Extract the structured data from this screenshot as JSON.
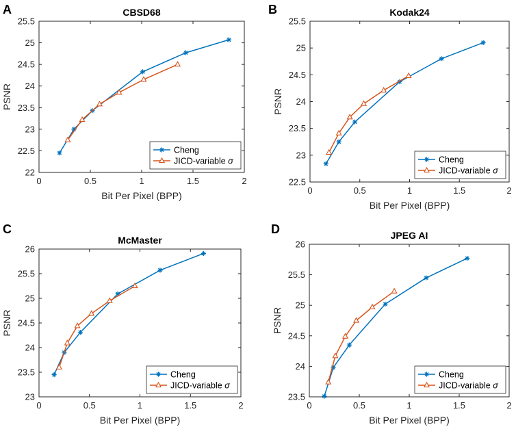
{
  "chart_data": [
    {
      "panel": "A",
      "type": "line",
      "title": "CBSD68",
      "xlabel": "Bit Per Pixel (BPP)",
      "ylabel": "PSNR",
      "xlim": [
        0,
        2
      ],
      "ylim": [
        22,
        25.5
      ],
      "xticks": [
        0,
        0.5,
        1,
        1.5,
        2
      ],
      "xtick_labels": [
        "0",
        "0.5",
        "1",
        "1.5",
        "2"
      ],
      "yticks": [
        22,
        22.5,
        23,
        23.5,
        24,
        24.5,
        25,
        25.5
      ],
      "ytick_labels": [
        "22",
        "22.5",
        "23",
        "23.5",
        "24",
        "24.5",
        "25",
        "25.5"
      ],
      "legend_position": "bottom-right",
      "series": [
        {
          "name": "Cheng",
          "color": "#0072BD",
          "marker": "asterisk",
          "x": [
            0.2,
            0.34,
            0.52,
            1.01,
            1.43,
            1.85
          ],
          "y": [
            22.45,
            23.0,
            23.43,
            24.33,
            24.77,
            25.07
          ]
        },
        {
          "name": "JICD-variable",
          "symbol": "σ",
          "color": "#D95319",
          "marker": "triangle",
          "x": [
            0.28,
            0.42,
            0.59,
            0.78,
            1.02,
            1.35
          ],
          "y": [
            22.75,
            23.22,
            23.58,
            23.85,
            24.15,
            24.5
          ]
        }
      ]
    },
    {
      "panel": "B",
      "type": "line",
      "title": "Kodak24",
      "xlabel": "Bit Per Pixel (BPP)",
      "ylabel": "PSNR",
      "xlim": [
        0,
        2
      ],
      "ylim": [
        22.5,
        25.5
      ],
      "xticks": [
        0,
        0.5,
        1,
        1.5,
        2
      ],
      "xtick_labels": [
        "0",
        "0.5",
        "1",
        "1.5",
        "2"
      ],
      "yticks": [
        22.5,
        23,
        23.5,
        24,
        24.5,
        25,
        25.5
      ],
      "ytick_labels": [
        "22.5",
        "23",
        "23.5",
        "24",
        "24.5",
        "25",
        "25.5"
      ],
      "legend_position": "bottom-right",
      "series": [
        {
          "name": "Cheng",
          "color": "#0072BD",
          "marker": "asterisk",
          "x": [
            0.16,
            0.29,
            0.45,
            0.9,
            1.32,
            1.74
          ],
          "y": [
            22.84,
            23.25,
            23.62,
            24.37,
            24.8,
            25.1
          ]
        },
        {
          "name": "JICD-variable",
          "symbol": "σ",
          "color": "#D95319",
          "marker": "triangle",
          "x": [
            0.19,
            0.29,
            0.4,
            0.54,
            0.74,
            0.99
          ],
          "y": [
            23.05,
            23.41,
            23.71,
            23.96,
            24.21,
            24.48
          ]
        }
      ]
    },
    {
      "panel": "C",
      "type": "line",
      "title": "McMaster",
      "xlabel": "Bit Per Pixel (BPP)",
      "ylabel": "PSNR",
      "xlim": [
        0,
        2
      ],
      "ylim": [
        23,
        26
      ],
      "xticks": [
        0,
        0.5,
        1,
        1.5,
        2
      ],
      "xtick_labels": [
        "0",
        "0.5",
        "1",
        "1.5",
        "2"
      ],
      "yticks": [
        23,
        23.5,
        24,
        24.5,
        25,
        25.5,
        26
      ],
      "ytick_labels": [
        "23",
        "23.5",
        "24",
        "24.5",
        "25",
        "25.5",
        "26"
      ],
      "legend_position": "bottom-right",
      "series": [
        {
          "name": "Cheng",
          "color": "#0072BD",
          "marker": "asterisk",
          "x": [
            0.15,
            0.25,
            0.41,
            0.78,
            1.2,
            1.63
          ],
          "y": [
            23.45,
            23.9,
            24.31,
            25.09,
            25.57,
            25.91
          ]
        },
        {
          "name": "JICD-variable",
          "symbol": "σ",
          "color": "#D95319",
          "marker": "triangle",
          "x": [
            0.2,
            0.28,
            0.38,
            0.52,
            0.7,
            0.95
          ],
          "y": [
            23.6,
            24.09,
            24.44,
            24.69,
            24.95,
            25.25
          ]
        }
      ]
    },
    {
      "panel": "D",
      "type": "line",
      "title": "JPEG AI",
      "xlabel": "Bit Per Pixel (BPP)",
      "ylabel": "PSNR",
      "xlim": [
        0,
        2
      ],
      "ylim": [
        23.5,
        26
      ],
      "xticks": [
        0,
        0.5,
        1,
        1.5,
        2
      ],
      "xtick_labels": [
        "0",
        "0.5",
        "1",
        "1.5",
        "2"
      ],
      "yticks": [
        23.5,
        24,
        24.5,
        25,
        25.5,
        26
      ],
      "ytick_labels": [
        "23.5",
        "24",
        "24.5",
        "25",
        "25.5",
        "26"
      ],
      "legend_position": "bottom-right",
      "series": [
        {
          "name": "Cheng",
          "color": "#0072BD",
          "marker": "asterisk",
          "x": [
            0.15,
            0.24,
            0.4,
            0.76,
            1.17,
            1.58
          ],
          "y": [
            23.51,
            23.98,
            24.35,
            25.02,
            25.45,
            25.77
          ]
        },
        {
          "name": "JICD-variable",
          "symbol": "σ",
          "color": "#D95319",
          "marker": "triangle",
          "x": [
            0.19,
            0.26,
            0.36,
            0.47,
            0.63,
            0.85
          ],
          "y": [
            23.74,
            24.17,
            24.49,
            24.75,
            24.97,
            25.23
          ]
        }
      ]
    }
  ]
}
